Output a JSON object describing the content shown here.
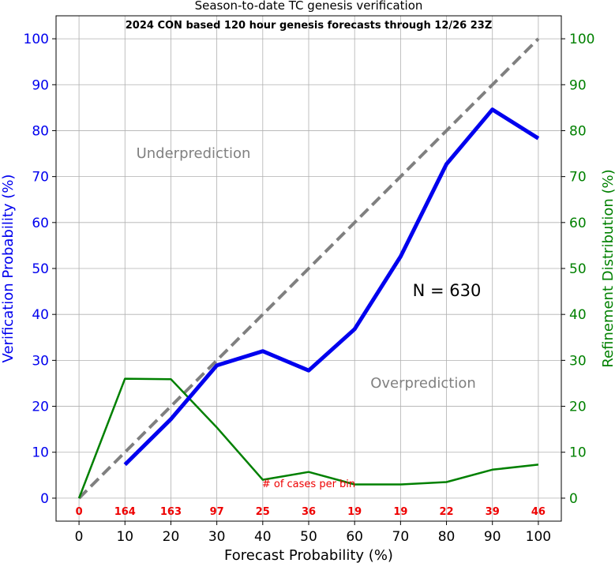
{
  "chart_data": {
    "type": "line",
    "title": "Season-to-date TC genesis verification",
    "subtitle": "2024 CON based 120 hour genesis forecasts through 12/26 23Z",
    "xlabel": "Forecast Probability (%)",
    "ylabel_left": "Verification Probability (%)",
    "ylabel_right": "Refinement Distribution (%)",
    "xlim": [
      -5,
      105
    ],
    "ylim": [
      -5,
      105
    ],
    "x_ticks": [
      "0",
      "10",
      "20",
      "30",
      "40",
      "50",
      "60",
      "70",
      "80",
      "90",
      "100"
    ],
    "y_ticks": [
      "0",
      "10",
      "20",
      "30",
      "40",
      "50",
      "60",
      "70",
      "80",
      "90",
      "100"
    ],
    "grid": true,
    "series": [
      {
        "color": "#0000ee",
        "x": [
          10,
          20,
          30,
          40,
          50,
          60,
          70,
          80,
          90,
          100
        ],
        "values": [
          7.3,
          17.2,
          28.9,
          32.0,
          27.8,
          36.8,
          52.6,
          72.7,
          84.6,
          78.3
        ]
      },
      {
        "color": "#008000",
        "x": [
          0,
          10,
          20,
          30,
          40,
          50,
          60,
          70,
          80,
          90,
          100
        ],
        "values": [
          0,
          26.0,
          25.9,
          15.4,
          4.0,
          5.7,
          3.0,
          3.0,
          3.5,
          6.2,
          7.3
        ]
      },
      {
        "color": "#808080",
        "style": "dashed",
        "x": [
          0,
          100
        ],
        "values": [
          0,
          100
        ]
      }
    ],
    "annotations": {
      "underprediction": "Underprediction",
      "overprediction": "Overprediction",
      "n_label": "N = 630",
      "cases_label": "# of cases per bin"
    },
    "case_counts": {
      "x": [
        0,
        10,
        20,
        30,
        40,
        50,
        60,
        70,
        80,
        90,
        100
      ],
      "labels": [
        "0",
        "164",
        "163",
        "97",
        "25",
        "36",
        "19",
        "19",
        "22",
        "39",
        "46"
      ]
    },
    "colors": {
      "verification": "#0000ee",
      "refinement": "#008000",
      "perfect": "#808080",
      "counts": "#ee0000",
      "annotation": "#808080"
    }
  }
}
